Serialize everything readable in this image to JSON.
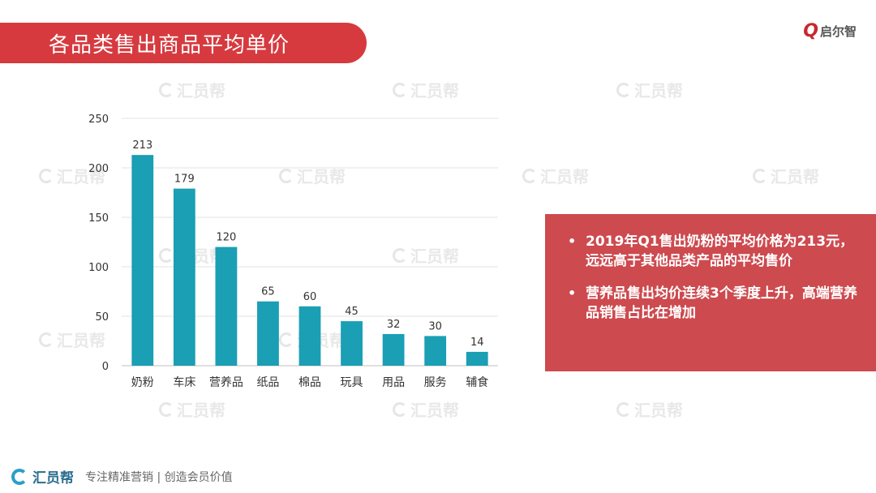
{
  "header": {
    "title": "各品类售出商品平均单价",
    "logo_mark": "Q",
    "logo_name": "启尔智"
  },
  "watermark_text": "汇员帮",
  "chart_data": {
    "type": "bar",
    "categories": [
      "奶粉",
      "车床",
      "营养品",
      "纸品",
      "棉品",
      "玩具",
      "用品",
      "服务",
      "辅食"
    ],
    "values": [
      213,
      179,
      120,
      65,
      60,
      45,
      32,
      30,
      14
    ],
    "ylim": [
      0,
      250
    ],
    "yticks": [
      0,
      50,
      100,
      150,
      200,
      250
    ],
    "grid": true,
    "bar_color": "#1a9fb5",
    "data_labels": true
  },
  "callout": {
    "points": [
      "2019年Q1售出奶粉的平均价格为213元，远远高于其他品类产品的平均售价",
      "营养品售出均价连续3个季度上升，高端营养品销售占比在增加"
    ]
  },
  "footer": {
    "brand": "汇员帮",
    "slogan": "专注精准营销 | 创造会员价值"
  },
  "colors": {
    "accent": "#d63a3f",
    "callout_bg": "#cd4a4f",
    "bar": "#1a9fb5"
  }
}
